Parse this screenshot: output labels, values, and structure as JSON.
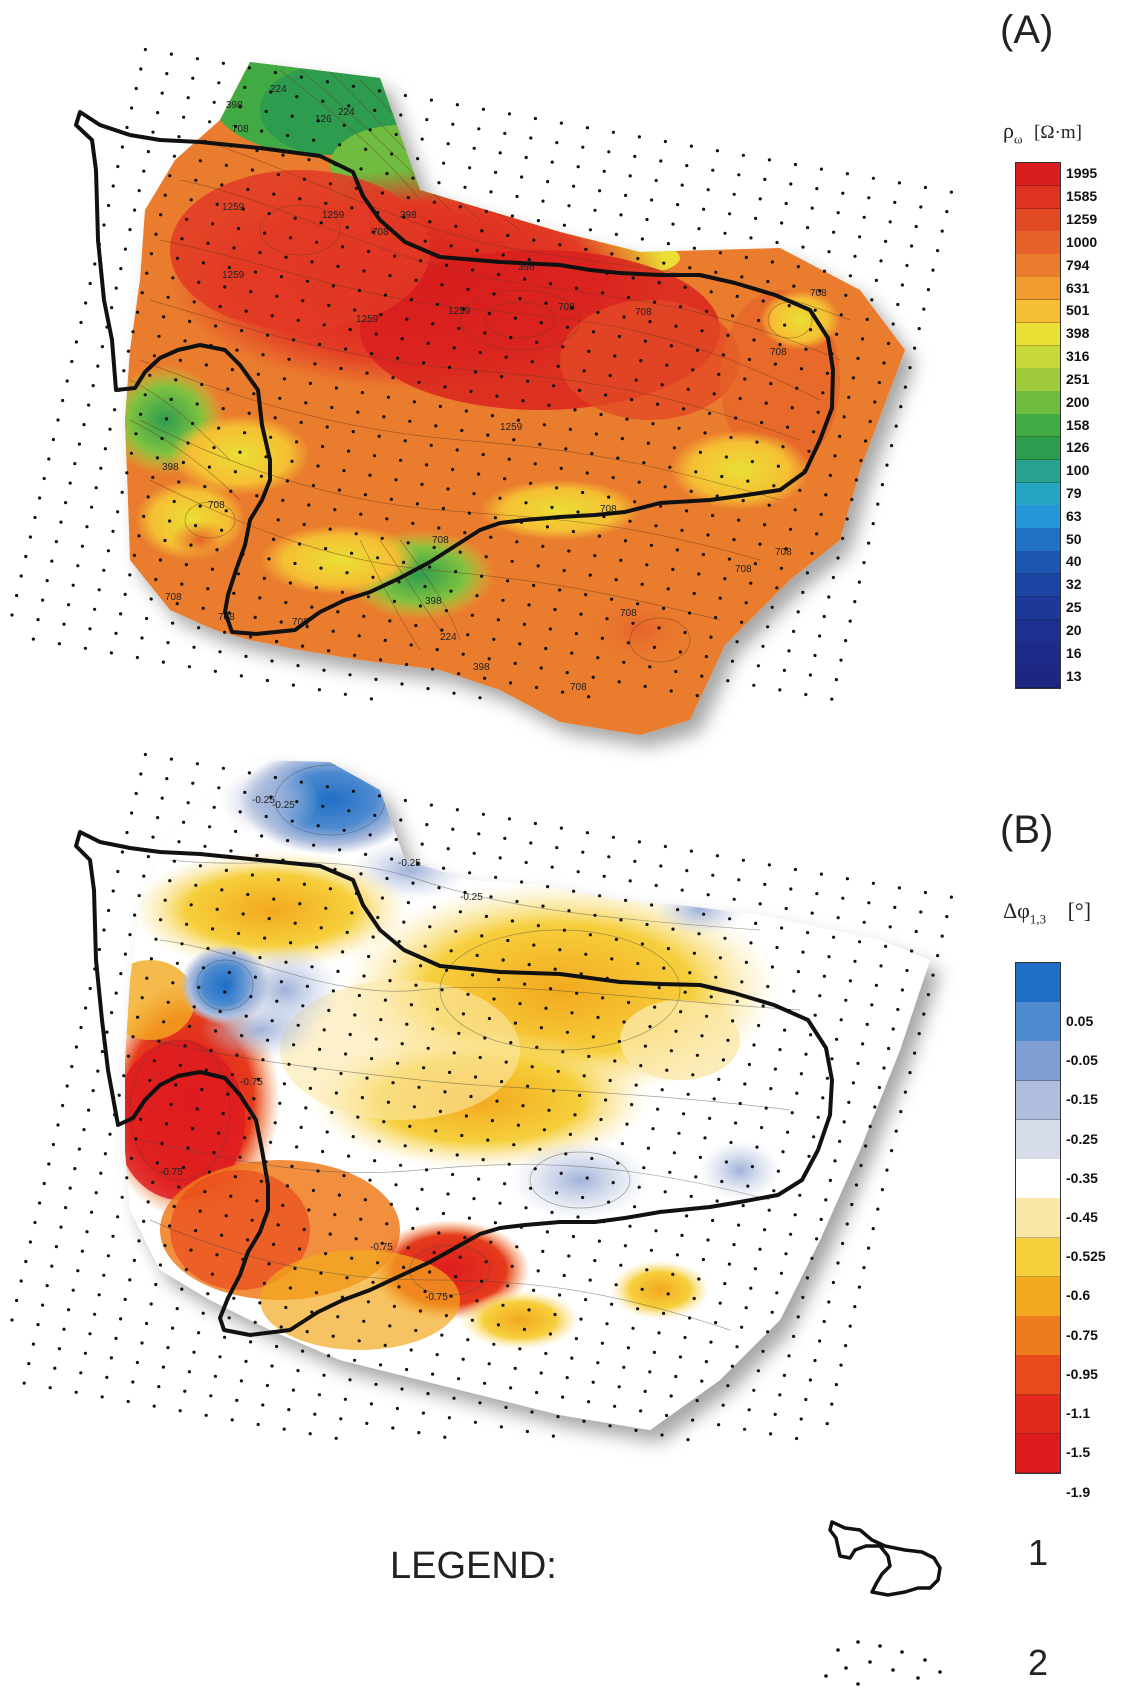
{
  "panel_a": {
    "label": "(A)",
    "scale_symbol": "ρ",
    "scale_subscript": "ω",
    "scale_unit": "[Ω·m]",
    "contour_labels": [
      "224",
      "126",
      "224",
      "398",
      "708",
      "1259",
      "1259",
      "398",
      "708",
      "1259",
      "1259",
      "1259",
      "708",
      "398",
      "708",
      "708",
      "708",
      "708",
      "398",
      "708",
      "708",
      "708",
      "708",
      "398",
      "224",
      "398",
      "708",
      "708",
      "708",
      "1259",
      "708",
      "708"
    ],
    "colorbar": {
      "ticks": [
        "1995",
        "1585",
        "1259",
        "1000",
        "794",
        "631",
        "501",
        "398",
        "316",
        "251",
        "200",
        "158",
        "126",
        "100",
        "79",
        "63",
        "50",
        "40",
        "32",
        "25",
        "20",
        "16",
        "13"
      ],
      "colors": [
        "#d81e1e",
        "#de3222",
        "#e24a26",
        "#e6622a",
        "#ea7c2e",
        "#f09a30",
        "#f5bf33",
        "#eadf35",
        "#c6d83a",
        "#9fcb3d",
        "#6fbc40",
        "#42aa43",
        "#2e9c4e",
        "#29a38f",
        "#27a6c4",
        "#2596d8",
        "#2070c4",
        "#1d56b0",
        "#1c44a2",
        "#1c3898",
        "#1d3090",
        "#1d2a88",
        "#1d2680"
      ]
    }
  },
  "panel_b": {
    "label": "(B)",
    "scale_symbol": "Δφ",
    "scale_subscript": "1,3",
    "scale_unit": "[°]",
    "contour_labels": [
      "-0.25",
      "-0.25",
      "-0.25",
      "-0.25",
      "-0.75",
      "-0.75",
      "-0.75",
      "-0.75"
    ],
    "colorbar": {
      "ticks": [
        "0.05",
        "-0.05",
        "-0.15",
        "-0.25",
        "-0.35",
        "-0.45",
        "-0.525",
        "-0.6",
        "-0.75",
        "-0.95",
        "-1.1",
        "-1.5",
        "-1.9"
      ],
      "colors": [
        "#1f6fc6",
        "#4d8ad0",
        "#7f9fd3",
        "#b0bedd",
        "#d6dce9",
        "#ffffff",
        "#fbe7a8",
        "#f6cf3c",
        "#f3a91f",
        "#ee7b1d",
        "#e94a1c",
        "#e22a1c",
        "#de1c20"
      ]
    }
  },
  "legend": {
    "title": "LEGEND:",
    "item1": "1",
    "item2": "2"
  }
}
